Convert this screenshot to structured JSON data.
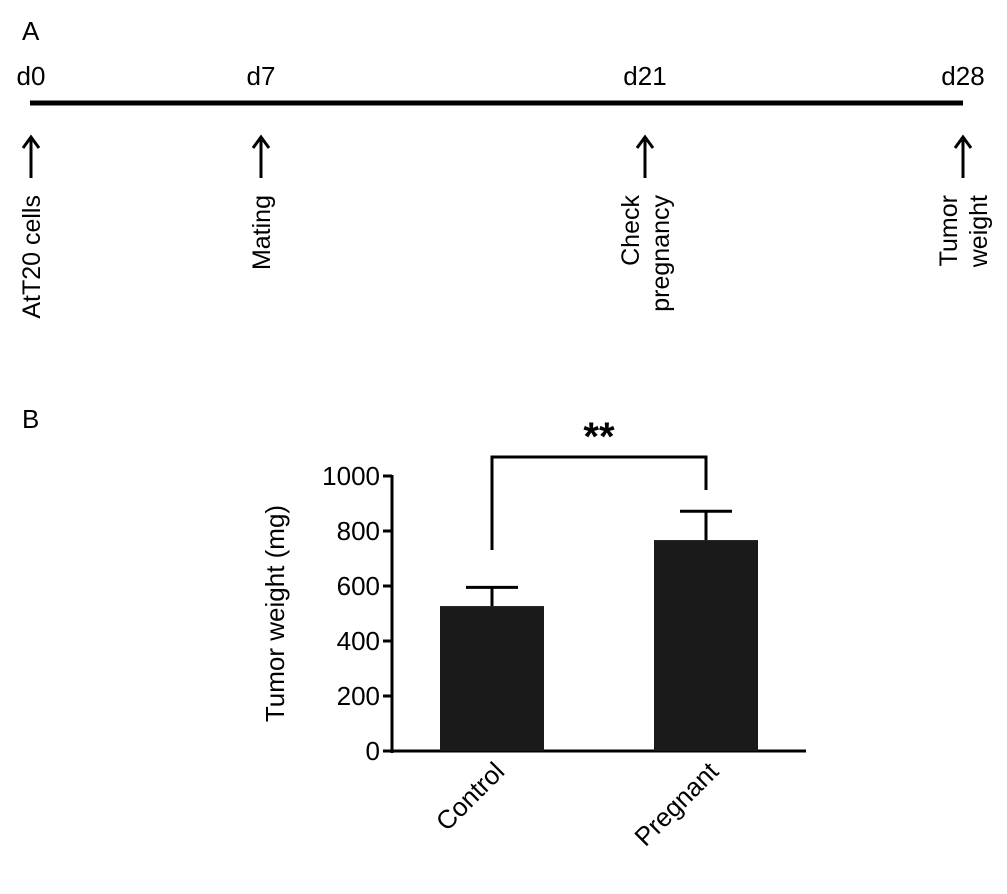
{
  "panels": {
    "a": {
      "label": "A"
    },
    "b": {
      "label": "B"
    }
  },
  "timeline": {
    "events": [
      {
        "day": "d0",
        "label_lines": [
          "AtT20 cells"
        ]
      },
      {
        "day": "d7",
        "label_lines": [
          "Mating"
        ]
      },
      {
        "day": "d21",
        "label_lines": [
          "Check",
          "pregnancy"
        ]
      },
      {
        "day": "d28",
        "label_lines": [
          "Tumor",
          "weight"
        ]
      }
    ]
  },
  "chart_data": {
    "type": "bar",
    "categories": [
      "Control",
      "Pregnant"
    ],
    "values": [
      527,
      767
    ],
    "errors": [
      68,
      105
    ],
    "ylabel": "Tumor weight (mg)",
    "xlabel": "",
    "ylim": [
      0,
      1000
    ],
    "yticks": [
      0,
      200,
      400,
      600,
      800,
      1000
    ],
    "significance": {
      "label": "**",
      "between": [
        "Control",
        "Pregnant"
      ]
    },
    "bar_color": "#1a1a1a"
  }
}
